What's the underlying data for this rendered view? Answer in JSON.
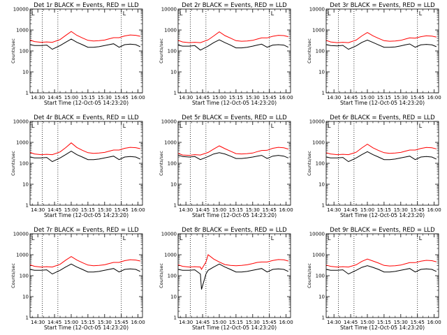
{
  "colors": {
    "events": "#000000",
    "lld": "#ff0000",
    "background": "#ffffff",
    "axis": "#000000"
  },
  "shared": {
    "ylabel": "Counts/sec",
    "xlabel": "Start Time (12-Oct-05 14:23:20)",
    "x_ticks": [
      "14:30",
      "14:45",
      "15:00",
      "15:15",
      "15:30",
      "15:45",
      "16:00"
    ],
    "y_ticks": [
      "1",
      "10",
      "100",
      "1000",
      "10000"
    ],
    "marker": "L"
  },
  "chart_data": [
    {
      "type": "line",
      "title": "Det 1r BLACK = Events, RED = LLD",
      "x": [
        "14:23",
        "14:27",
        "14:33",
        "14:38",
        "14:43",
        "14:50",
        "14:55",
        "15:00",
        "15:05",
        "15:10",
        "15:15",
        "15:20",
        "15:25",
        "15:30",
        "15:34",
        "15:38",
        "15:43",
        "15:48",
        "15:53",
        "15:58",
        "16:02"
      ],
      "xlim": [
        "14:23",
        "16:04"
      ],
      "ylim": [
        1,
        10000
      ],
      "yscale": "log",
      "vlines": [
        "14:34",
        "14:48",
        "15:45"
      ],
      "series": [
        {
          "name": "Events",
          "values": [
            200,
            180,
            180,
            190,
            120,
            180,
            260,
            370,
            260,
            200,
            150,
            150,
            160,
            180,
            200,
            220,
            150,
            200,
            210,
            200,
            160
          ]
        },
        {
          "name": "LLD",
          "values": [
            330,
            280,
            260,
            270,
            260,
            350,
            550,
            850,
            560,
            420,
            320,
            300,
            310,
            330,
            380,
            430,
            430,
            520,
            580,
            560,
            500
          ]
        }
      ]
    },
    {
      "type": "line",
      "title": "Det 2r BLACK = Events, RED = LLD",
      "x": [
        "14:23",
        "14:27",
        "14:33",
        "14:38",
        "14:43",
        "14:50",
        "14:55",
        "15:00",
        "15:05",
        "15:10",
        "15:15",
        "15:20",
        "15:25",
        "15:30",
        "15:34",
        "15:38",
        "15:43",
        "15:48",
        "15:53",
        "15:58",
        "16:02"
      ],
      "xlim": [
        "14:23",
        "16:04"
      ],
      "ylim": [
        1,
        10000
      ],
      "yscale": "log",
      "vlines": [
        "14:34",
        "14:48",
        "15:45"
      ],
      "series": [
        {
          "name": "Events",
          "values": [
            190,
            170,
            170,
            180,
            110,
            170,
            250,
            340,
            250,
            190,
            140,
            140,
            150,
            170,
            190,
            210,
            150,
            190,
            200,
            190,
            150
          ]
        },
        {
          "name": "LLD",
          "values": [
            320,
            270,
            250,
            260,
            250,
            340,
            520,
            820,
            540,
            410,
            310,
            290,
            300,
            320,
            370,
            420,
            420,
            500,
            560,
            540,
            480
          ]
        }
      ]
    },
    {
      "type": "line",
      "title": "Det 3r BLACK = Events, RED = LLD",
      "x": [
        "14:23",
        "14:27",
        "14:33",
        "14:38",
        "14:43",
        "14:50",
        "14:55",
        "15:00",
        "15:05",
        "15:10",
        "15:15",
        "15:20",
        "15:25",
        "15:30",
        "15:34",
        "15:38",
        "15:43",
        "15:48",
        "15:53",
        "15:58",
        "16:02"
      ],
      "xlim": [
        "14:23",
        "16:04"
      ],
      "ylim": [
        1,
        10000
      ],
      "yscale": "log",
      "vlines": [
        "14:34",
        "14:48",
        "15:45"
      ],
      "series": [
        {
          "name": "Events",
          "values": [
            200,
            180,
            175,
            185,
            120,
            175,
            255,
            330,
            255,
            195,
            150,
            150,
            155,
            175,
            195,
            215,
            150,
            195,
            205,
            195,
            160
          ]
        },
        {
          "name": "LLD",
          "values": [
            320,
            270,
            250,
            260,
            250,
            330,
            520,
            760,
            530,
            400,
            310,
            290,
            300,
            320,
            370,
            420,
            410,
            480,
            530,
            510,
            460
          ]
        }
      ]
    },
    {
      "type": "line",
      "title": "Det 4r BLACK = Events, RED = LLD",
      "x": [
        "14:23",
        "14:27",
        "14:33",
        "14:38",
        "14:43",
        "14:50",
        "14:55",
        "15:00",
        "15:05",
        "15:10",
        "15:15",
        "15:20",
        "15:25",
        "15:30",
        "15:34",
        "15:38",
        "15:43",
        "15:48",
        "15:53",
        "15:58",
        "16:02"
      ],
      "xlim": [
        "14:23",
        "16:04"
      ],
      "ylim": [
        1,
        10000
      ],
      "yscale": "log",
      "vlines": [
        "14:34",
        "14:48",
        "15:45"
      ],
      "series": [
        {
          "name": "Events",
          "values": [
            200,
            180,
            180,
            190,
            120,
            180,
            260,
            380,
            260,
            200,
            150,
            150,
            160,
            180,
            200,
            220,
            150,
            200,
            210,
            200,
            160
          ]
        },
        {
          "name": "LLD",
          "values": [
            330,
            280,
            260,
            270,
            260,
            350,
            560,
            950,
            570,
            420,
            320,
            300,
            310,
            330,
            380,
            430,
            430,
            520,
            580,
            560,
            500
          ]
        }
      ]
    },
    {
      "type": "line",
      "title": "Det 5r BLACK = Events, RED = LLD",
      "x": [
        "14:23",
        "14:27",
        "14:33",
        "14:38",
        "14:43",
        "14:50",
        "14:55",
        "15:00",
        "15:05",
        "15:10",
        "15:15",
        "15:20",
        "15:25",
        "15:30",
        "15:34",
        "15:38",
        "15:43",
        "15:48",
        "15:53",
        "15:58",
        "16:02"
      ],
      "xlim": [
        "14:23",
        "16:04"
      ],
      "ylim": [
        1,
        10000
      ],
      "yscale": "log",
      "vlines": [
        "14:34",
        "14:48",
        "15:45"
      ],
      "series": [
        {
          "name": "Events",
          "values": [
            250,
            210,
            200,
            210,
            150,
            210,
            280,
            320,
            280,
            220,
            170,
            170,
            180,
            200,
            220,
            240,
            170,
            220,
            240,
            220,
            180
          ]
        },
        {
          "name": "LLD",
          "values": [
            300,
            250,
            240,
            260,
            250,
            330,
            480,
            680,
            500,
            380,
            290,
            280,
            290,
            310,
            360,
            410,
            420,
            520,
            580,
            550,
            480
          ]
        }
      ]
    },
    {
      "type": "line",
      "title": "Det 6r BLACK = Events, RED = LLD",
      "x": [
        "14:23",
        "14:27",
        "14:33",
        "14:38",
        "14:43",
        "14:50",
        "14:55",
        "15:00",
        "15:05",
        "15:10",
        "15:15",
        "15:20",
        "15:25",
        "15:30",
        "15:34",
        "15:38",
        "15:43",
        "15:48",
        "15:53",
        "15:58",
        "16:02"
      ],
      "xlim": [
        "14:23",
        "16:04"
      ],
      "ylim": [
        1,
        10000
      ],
      "yscale": "log",
      "vlines": [
        "14:34",
        "14:48",
        "15:45"
      ],
      "series": [
        {
          "name": "Events",
          "values": [
            200,
            180,
            180,
            190,
            120,
            180,
            260,
            360,
            260,
            200,
            150,
            150,
            160,
            180,
            200,
            220,
            150,
            200,
            210,
            200,
            160
          ]
        },
        {
          "name": "LLD",
          "values": [
            320,
            280,
            260,
            270,
            260,
            340,
            540,
            820,
            550,
            410,
            320,
            300,
            310,
            330,
            380,
            430,
            430,
            510,
            570,
            550,
            490
          ]
        }
      ]
    },
    {
      "type": "line",
      "title": "Det 7r BLACK = Events, RED = LLD",
      "x": [
        "14:23",
        "14:27",
        "14:33",
        "14:38",
        "14:43",
        "14:50",
        "14:55",
        "15:00",
        "15:05",
        "15:10",
        "15:15",
        "15:20",
        "15:25",
        "15:30",
        "15:34",
        "15:38",
        "15:43",
        "15:48",
        "15:53",
        "15:58",
        "16:02"
      ],
      "xlim": [
        "14:23",
        "16:04"
      ],
      "ylim": [
        1,
        10000
      ],
      "yscale": "log",
      "vlines": [
        "14:34",
        "14:48",
        "15:45"
      ],
      "series": [
        {
          "name": "Events",
          "values": [
            200,
            180,
            180,
            190,
            120,
            180,
            260,
            360,
            260,
            200,
            150,
            150,
            160,
            180,
            200,
            220,
            150,
            200,
            210,
            200,
            160
          ]
        },
        {
          "name": "LLD",
          "values": [
            330,
            280,
            260,
            270,
            260,
            350,
            550,
            820,
            560,
            420,
            320,
            300,
            310,
            330,
            380,
            430,
            430,
            520,
            580,
            560,
            500
          ]
        }
      ]
    },
    {
      "type": "line",
      "title": "Det 8r BLACK = Events, RED = LLD",
      "x": [
        "14:23",
        "14:27",
        "14:33",
        "14:38",
        "14:43",
        "14:44",
        "14:48",
        "14:50",
        "14:55",
        "15:00",
        "15:05",
        "15:10",
        "15:15",
        "15:20",
        "15:25",
        "15:30",
        "15:34",
        "15:38",
        "15:43",
        "15:48",
        "15:53",
        "15:58",
        "16:02"
      ],
      "xlim": [
        "14:23",
        "16:04"
      ],
      "ylim": [
        1,
        10000
      ],
      "yscale": "log",
      "vlines": [
        "14:34",
        "14:48",
        "15:45"
      ],
      "series": [
        {
          "name": "Events",
          "values": [
            200,
            180,
            180,
            190,
            120,
            22,
            120,
            180,
            260,
            360,
            260,
            200,
            150,
            150,
            160,
            180,
            200,
            220,
            150,
            200,
            210,
            200,
            160
          ]
        },
        {
          "name": "LLD",
          "values": [
            330,
            280,
            260,
            270,
            260,
            200,
            450,
            1000,
            620,
            450,
            340,
            310,
            300,
            310,
            330,
            380,
            430,
            450,
            450,
            530,
            590,
            570,
            500
          ]
        }
      ]
    },
    {
      "type": "line",
      "title": "Det 9r BLACK = Events, RED = LLD",
      "x": [
        "14:23",
        "14:27",
        "14:33",
        "14:38",
        "14:43",
        "14:50",
        "14:55",
        "15:00",
        "15:05",
        "15:10",
        "15:15",
        "15:20",
        "15:25",
        "15:30",
        "15:34",
        "15:38",
        "15:43",
        "15:48",
        "15:53",
        "15:58",
        "16:02"
      ],
      "xlim": [
        "14:23",
        "16:04"
      ],
      "ylim": [
        1,
        10000
      ],
      "yscale": "log",
      "vlines": [
        "14:34",
        "14:48",
        "15:45"
      ],
      "series": [
        {
          "name": "Events",
          "values": [
            200,
            180,
            180,
            190,
            120,
            180,
            250,
            300,
            250,
            200,
            150,
            150,
            160,
            180,
            200,
            220,
            150,
            200,
            210,
            200,
            160
          ]
        },
        {
          "name": "LLD",
          "values": [
            320,
            280,
            260,
            270,
            260,
            330,
            480,
            620,
            500,
            400,
            310,
            290,
            300,
            320,
            370,
            420,
            420,
            490,
            540,
            520,
            460
          ]
        }
      ]
    }
  ]
}
